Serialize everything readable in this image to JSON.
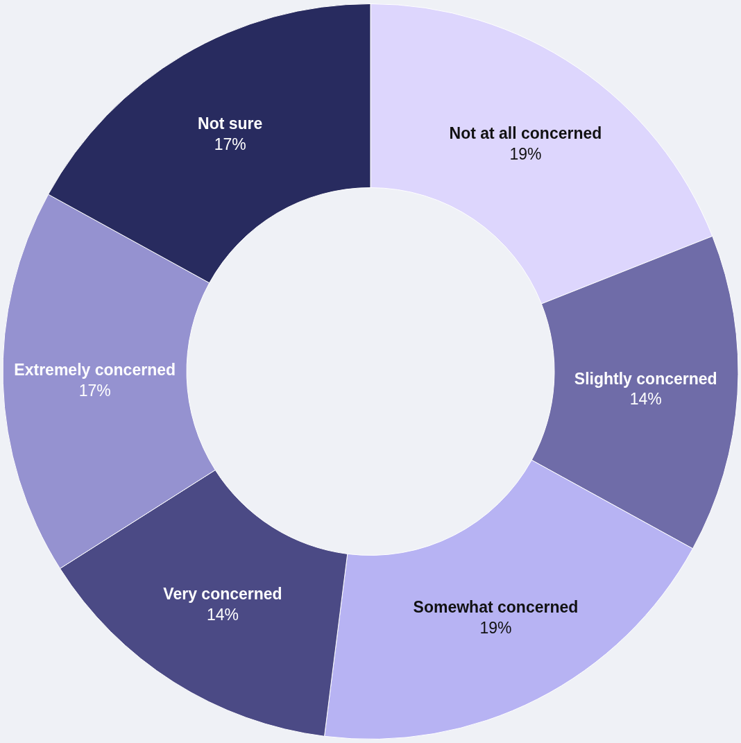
{
  "chart_data": {
    "type": "donut",
    "categories": [
      "Not at all concerned",
      "Slightly concerned",
      "Somewhat concerned",
      "Very concerned",
      "Extremely concerned",
      "Not sure"
    ],
    "values": [
      19,
      14,
      19,
      14,
      17,
      17
    ],
    "value_labels": [
      "19%",
      "14%",
      "19%",
      "14%",
      "17%",
      "17%"
    ],
    "colors": [
      "#ddd6fd",
      "#6f6ca8",
      "#b7b3f3",
      "#4b4a85",
      "#9592d0",
      "#282b5f"
    ],
    "legend": false
  }
}
